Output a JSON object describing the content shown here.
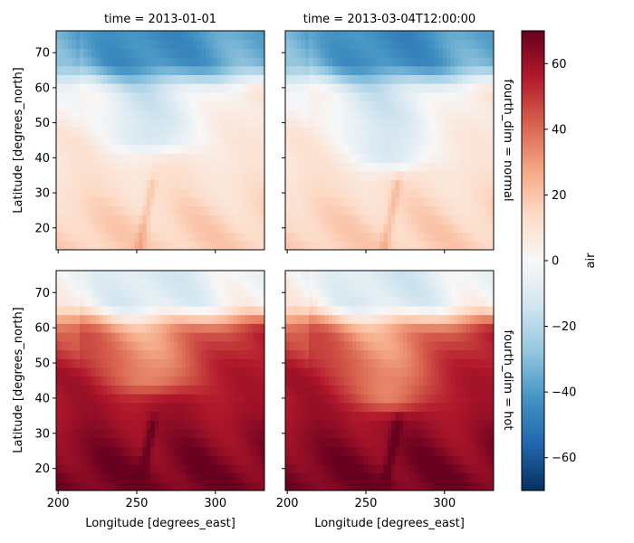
{
  "chart_data": {
    "type": "heatmap",
    "colormap": "RdBu_r",
    "colorbar": {
      "label": "air",
      "vmin": -70,
      "vmax": 70,
      "ticks": [
        -60,
        -40,
        -20,
        0,
        20,
        40,
        60
      ],
      "tick_labels": [
        "−60",
        "−40",
        "−20",
        "0",
        "20",
        "40",
        "60"
      ]
    },
    "xlabel": "Longitude [degrees_east]",
    "ylabel": "Latitude [degrees_north]",
    "xlim": [
      198.75,
      331.25
    ],
    "ylim": [
      13.75,
      76.25
    ],
    "x_ticks": [
      200,
      250,
      300
    ],
    "x_tick_labels": [
      "200",
      "250",
      "300"
    ],
    "y_ticks": [
      20,
      30,
      40,
      50,
      60,
      70
    ],
    "y_tick_labels": [
      "20",
      "30",
      "40",
      "50",
      "60",
      "70"
    ],
    "col_titles": [
      "time = 2013-01-01",
      "time = 2013-03-04T12:00:00"
    ],
    "row_titles": [
      "fourth_dim = normal",
      "fourth_dim = hot"
    ],
    "panels": [
      {
        "row": 0,
        "col": 0,
        "time": "2013-01-01",
        "fourth_dim": "normal",
        "approx_range": [
          -55,
          20
        ],
        "features": "cold anomaly (blue, about -20 to -50) over northern band 62-76N, extending south in a wedge around 250-275E to ~38N; warm (light red ~10-20) south of 40N"
      },
      {
        "row": 0,
        "col": 1,
        "time": "2013-03-04T12:00:00",
        "fourth_dim": "normal",
        "approx_range": [
          -55,
          20
        ],
        "features": "cold anomaly in north, wedge around 245-280E reaching ~33N; warm streak ~265E near 15-30N"
      },
      {
        "row": 1,
        "col": 0,
        "time": "2013-01-01",
        "fourth_dim": "hot",
        "approx_range": [
          -5,
          70
        ],
        "features": "near 0 (white) in north 68-76N, warm ~20-40 mid-latitudes, hot ~50-65 south of 40N"
      },
      {
        "row": 1,
        "col": 1,
        "time": "2013-03-04T12:00:00",
        "fourth_dim": "hot",
        "approx_range": [
          -5,
          70
        ],
        "features": "similar pattern; hotter streak ~265E near 15-30N"
      }
    ]
  }
}
